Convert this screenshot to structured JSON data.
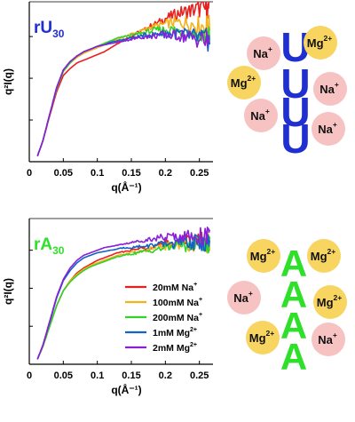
{
  "chart_data": [
    {
      "type": "line",
      "panel_label": {
        "main": "rU",
        "sub": "30",
        "color": "#1f2fd0"
      },
      "xlabel": "q(Å⁻¹)",
      "ylabel": "q²I(q)",
      "xlim": [
        0,
        0.27
      ],
      "ylim": [
        0,
        1.15
      ],
      "xticks": [
        0,
        0.05,
        0.1,
        0.15,
        0.2,
        0.25
      ],
      "xtick_labels": [
        "0",
        "0.05",
        "0.1",
        "0.15",
        "0.2",
        "0.25"
      ],
      "y_tick_labels_shown": false,
      "grid": false,
      "x": [
        0.012,
        0.02,
        0.03,
        0.04,
        0.05,
        0.06,
        0.07,
        0.08,
        0.09,
        0.1,
        0.11,
        0.12,
        0.13,
        0.14,
        0.15,
        0.16,
        0.17,
        0.18,
        0.19,
        0.2,
        0.21,
        0.22,
        0.23,
        0.24,
        0.25,
        0.26,
        0.265
      ],
      "series": [
        {
          "id": "rU-20Na",
          "color": "#e8201c",
          "values": [
            0.04,
            0.15,
            0.33,
            0.5,
            0.62,
            0.67,
            0.71,
            0.73,
            0.75,
            0.77,
            0.79,
            0.82,
            0.85,
            0.88,
            0.9,
            0.93,
            0.95,
            0.98,
            1.0,
            1.03,
            1.05,
            1.07,
            1.08,
            1.09,
            1.1,
            1.1,
            1.1
          ]
        },
        {
          "id": "rU-100Na",
          "color": "#f2b21c",
          "values": [
            0.04,
            0.15,
            0.34,
            0.52,
            0.65,
            0.71,
            0.75,
            0.78,
            0.8,
            0.82,
            0.84,
            0.86,
            0.88,
            0.9,
            0.92,
            0.93,
            0.95,
            0.97,
            0.98,
            0.99,
            1.0,
            1.0,
            1.0,
            0.99,
            0.98,
            0.98,
            0.97
          ]
        },
        {
          "id": "rU-200Na",
          "color": "#33d12a",
          "values": [
            0.04,
            0.15,
            0.34,
            0.52,
            0.65,
            0.71,
            0.76,
            0.79,
            0.81,
            0.83,
            0.85,
            0.87,
            0.89,
            0.9,
            0.91,
            0.92,
            0.93,
            0.94,
            0.95,
            0.95,
            0.95,
            0.94,
            0.93,
            0.92,
            0.91,
            0.9,
            0.89
          ]
        },
        {
          "id": "rU-1Mg",
          "color": "#1560c9",
          "values": [
            0.04,
            0.15,
            0.34,
            0.53,
            0.66,
            0.72,
            0.76,
            0.79,
            0.81,
            0.83,
            0.84,
            0.86,
            0.87,
            0.88,
            0.89,
            0.9,
            0.91,
            0.91,
            0.92,
            0.92,
            0.92,
            0.92,
            0.91,
            0.9,
            0.89,
            0.88,
            0.87
          ]
        },
        {
          "id": "rU-2Mg",
          "color": "#8a1fd8",
          "values": [
            0.04,
            0.15,
            0.34,
            0.53,
            0.66,
            0.72,
            0.76,
            0.79,
            0.81,
            0.83,
            0.84,
            0.85,
            0.86,
            0.87,
            0.88,
            0.89,
            0.9,
            0.9,
            0.91,
            0.91,
            0.91,
            0.91,
            0.9,
            0.89,
            0.88,
            0.87,
            0.86
          ]
        }
      ]
    },
    {
      "type": "line",
      "panel_label": {
        "main": "rA",
        "sub": "30",
        "color": "#2fe02a"
      },
      "xlabel": "q(Å⁻¹)",
      "ylabel": "q²I(q)",
      "xlim": [
        0,
        0.27
      ],
      "ylim": [
        0,
        1.15
      ],
      "xticks": [
        0,
        0.05,
        0.1,
        0.15,
        0.2,
        0.25
      ],
      "xtick_labels": [
        "0",
        "0.05",
        "0.1",
        "0.15",
        "0.2",
        "0.25"
      ],
      "y_tick_labels_shown": false,
      "grid": false,
      "legend_position": "bottom-right",
      "x": [
        0.012,
        0.02,
        0.03,
        0.04,
        0.05,
        0.06,
        0.07,
        0.08,
        0.09,
        0.1,
        0.11,
        0.12,
        0.13,
        0.14,
        0.15,
        0.16,
        0.17,
        0.18,
        0.19,
        0.2,
        0.21,
        0.22,
        0.23,
        0.24,
        0.25,
        0.26,
        0.265
      ],
      "series": [
        {
          "name": "20mM Na",
          "sup": "+",
          "color": "#e8201c",
          "values": [
            0.04,
            0.14,
            0.3,
            0.46,
            0.58,
            0.66,
            0.72,
            0.76,
            0.79,
            0.82,
            0.84,
            0.86,
            0.88,
            0.89,
            0.9,
            0.91,
            0.92,
            0.93,
            0.94,
            0.95,
            0.96,
            0.97,
            0.97,
            0.97,
            0.97,
            0.97,
            0.97
          ]
        },
        {
          "name": "100mM Na",
          "sup": "+",
          "color": "#f2b21c",
          "values": [
            0.04,
            0.14,
            0.3,
            0.46,
            0.58,
            0.66,
            0.71,
            0.75,
            0.78,
            0.8,
            0.82,
            0.84,
            0.86,
            0.87,
            0.88,
            0.89,
            0.9,
            0.91,
            0.92,
            0.93,
            0.94,
            0.95,
            0.95,
            0.95,
            0.95,
            0.95,
            0.95
          ]
        },
        {
          "name": "200mM Na",
          "sup": "+",
          "color": "#33d12a",
          "values": [
            0.04,
            0.14,
            0.3,
            0.46,
            0.58,
            0.65,
            0.7,
            0.74,
            0.77,
            0.79,
            0.81,
            0.83,
            0.85,
            0.86,
            0.87,
            0.88,
            0.89,
            0.9,
            0.91,
            0.92,
            0.93,
            0.94,
            0.94,
            0.95,
            0.95,
            0.95,
            0.95
          ]
        },
        {
          "name": "1mM Mg",
          "sup": "2+",
          "color": "#1560c9",
          "values": [
            0.04,
            0.15,
            0.33,
            0.52,
            0.66,
            0.74,
            0.8,
            0.84,
            0.86,
            0.88,
            0.89,
            0.9,
            0.91,
            0.92,
            0.92,
            0.93,
            0.93,
            0.94,
            0.94,
            0.95,
            0.95,
            0.96,
            0.96,
            0.96,
            0.96,
            0.96,
            0.96
          ]
        },
        {
          "name": "2mM Mg",
          "sup": "2+",
          "color": "#8a1fd8",
          "values": [
            0.04,
            0.15,
            0.34,
            0.53,
            0.67,
            0.76,
            0.82,
            0.86,
            0.88,
            0.9,
            0.92,
            0.93,
            0.94,
            0.95,
            0.96,
            0.97,
            0.98,
            0.99,
            1.0,
            1.0,
            1.01,
            1.01,
            1.01,
            1.01,
            1.01,
            1.01,
            1.01
          ]
        }
      ]
    }
  ],
  "illustrations": [
    {
      "id": "rU30-cartoon",
      "letter": "U",
      "letter_color": "#1f2fd0",
      "letter_count": 4,
      "ions": [
        {
          "id": "na-1",
          "label": "Na",
          "charge": "+"
        },
        {
          "id": "mg-1",
          "label": "Mg",
          "charge": "2+"
        },
        {
          "id": "mg-2",
          "label": "Mg",
          "charge": "2+"
        },
        {
          "id": "na-2",
          "label": "Na",
          "charge": "+"
        },
        {
          "id": "na-3",
          "label": "Na",
          "charge": "+"
        },
        {
          "id": "na-4",
          "label": "Na",
          "charge": "+"
        }
      ]
    },
    {
      "id": "rA30-cartoon",
      "letter": "A",
      "letter_color": "#2fe02a",
      "letter_count": 4,
      "ions": [
        {
          "id": "mg-1",
          "label": "Mg",
          "charge": "2+"
        },
        {
          "id": "mg-2",
          "label": "Mg",
          "charge": "2+"
        },
        {
          "id": "na-1",
          "label": "Na",
          "charge": "+"
        },
        {
          "id": "mg-3",
          "label": "Mg",
          "charge": "2+"
        },
        {
          "id": "mg-4",
          "label": "Mg",
          "charge": "2+"
        },
        {
          "id": "na-2",
          "label": "Na",
          "charge": "+"
        }
      ]
    }
  ],
  "ion_colors": {
    "Na": "#f7c2c2",
    "Mg": "#f7d560"
  }
}
